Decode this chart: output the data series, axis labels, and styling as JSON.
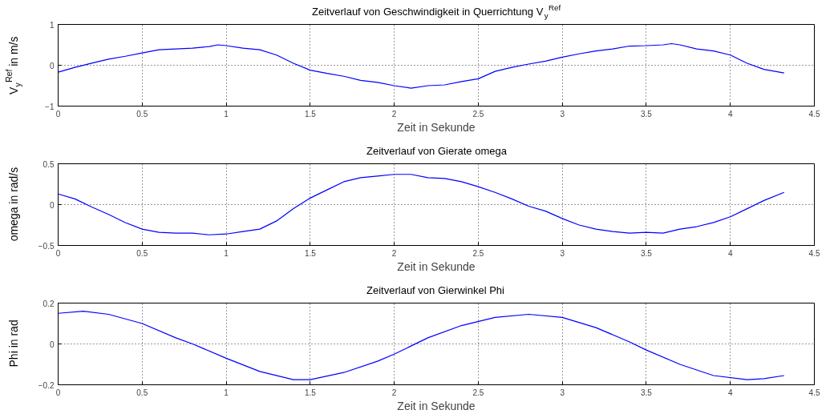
{
  "chart_data": [
    {
      "type": "line",
      "title": "Zeitverlauf von Geschwindigkeit in Querrichtung V$_{y}$$^{Ref}$",
      "xlabel": "Zeit in Sekunde",
      "ylabel": "V$_{y}$$^{Ref}$ in m/s",
      "xlim": [
        0,
        4.5
      ],
      "ylim": [
        -1,
        1
      ],
      "xticks": [
        0,
        0.5,
        1,
        1.5,
        2,
        2.5,
        3,
        3.5,
        4,
        4.5
      ],
      "yticks": [
        {
          "value": -1,
          "label": "−1"
        },
        0,
        1
      ],
      "grid": true,
      "line_style": "solid",
      "series": [
        {
          "color": "#0000ff",
          "x": [
            0,
            0.1,
            0.2,
            0.3,
            0.4,
            0.5,
            0.6,
            0.7,
            0.8,
            0.9,
            0.95,
            1.0,
            1.1,
            1.2,
            1.3,
            1.4,
            1.5,
            1.6,
            1.7,
            1.8,
            1.9,
            2.0,
            2.1,
            2.2,
            2.3,
            2.4,
            2.5,
            2.6,
            2.7,
            2.8,
            2.9,
            3.0,
            3.1,
            3.2,
            3.3,
            3.4,
            3.5,
            3.6,
            3.65,
            3.7,
            3.8,
            3.9,
            4.0,
            4.1,
            4.2,
            4.32
          ],
          "values": [
            -0.17,
            -0.05,
            0.05,
            0.15,
            0.22,
            0.3,
            0.38,
            0.4,
            0.42,
            0.46,
            0.5,
            0.48,
            0.42,
            0.38,
            0.25,
            0.05,
            -0.12,
            -0.2,
            -0.27,
            -0.37,
            -0.42,
            -0.5,
            -0.56,
            -0.5,
            -0.48,
            -0.4,
            -0.33,
            -0.15,
            -0.05,
            0.03,
            0.1,
            0.2,
            0.28,
            0.35,
            0.4,
            0.47,
            0.48,
            0.5,
            0.53,
            0.5,
            0.4,
            0.35,
            0.25,
            0.05,
            -0.1,
            -0.19
          ]
        }
      ]
    },
    {
      "type": "line",
      "title": "Zeitverlauf von Gierate omega",
      "xlabel": "Zeit in Sekunde",
      "ylabel": "omega in rad/s",
      "xlim": [
        0,
        4.5
      ],
      "ylim": [
        -0.5,
        0.5
      ],
      "xticks": [
        0,
        0.5,
        1,
        1.5,
        2,
        2.5,
        3,
        3.5,
        4,
        4.5
      ],
      "yticks": [
        {
          "value": -0.5,
          "label": "−0.5"
        },
        0,
        0.5
      ],
      "grid": true,
      "line_style": "solid",
      "series": [
        {
          "color": "#0000ff",
          "x": [
            0,
            0.1,
            0.2,
            0.3,
            0.4,
            0.5,
            0.6,
            0.7,
            0.8,
            0.9,
            1.0,
            1.1,
            1.2,
            1.3,
            1.4,
            1.5,
            1.6,
            1.7,
            1.8,
            1.9,
            2.0,
            2.1,
            2.2,
            2.3,
            2.4,
            2.5,
            2.6,
            2.7,
            2.8,
            2.9,
            3.0,
            3.1,
            3.2,
            3.3,
            3.4,
            3.5,
            3.6,
            3.7,
            3.8,
            3.9,
            4.0,
            4.1,
            4.2,
            4.32
          ],
          "values": [
            0.13,
            0.07,
            -0.03,
            -0.12,
            -0.22,
            -0.3,
            -0.34,
            -0.35,
            -0.35,
            -0.37,
            -0.36,
            -0.33,
            -0.3,
            -0.2,
            -0.05,
            0.08,
            0.18,
            0.28,
            0.33,
            0.35,
            0.37,
            0.37,
            0.33,
            0.32,
            0.28,
            0.22,
            0.15,
            0.07,
            -0.02,
            -0.08,
            -0.17,
            -0.25,
            -0.3,
            -0.33,
            -0.35,
            -0.34,
            -0.35,
            -0.3,
            -0.27,
            -0.22,
            -0.15,
            -0.05,
            0.05,
            0.15
          ]
        }
      ]
    },
    {
      "type": "line",
      "title": "Zeitverlauf von Gierwinkel Phi",
      "xlabel": "Zeit in Sekunde",
      "ylabel": "Phi in rad",
      "xlim": [
        0,
        4.5
      ],
      "ylim": [
        -0.2,
        0.2
      ],
      "xticks": [
        0,
        0.5,
        1,
        1.5,
        2,
        2.5,
        3,
        3.5,
        4,
        4.5
      ],
      "yticks": [
        {
          "value": -0.2,
          "label": "−0.2"
        },
        0,
        0.2
      ],
      "grid": true,
      "line_style": "solid",
      "series": [
        {
          "color": "#0000ff",
          "x": [
            0,
            0.15,
            0.3,
            0.5,
            0.7,
            0.8,
            1.0,
            1.2,
            1.4,
            1.5,
            1.7,
            1.9,
            2.0,
            2.2,
            2.4,
            2.6,
            2.8,
            3.0,
            3.2,
            3.4,
            3.5,
            3.7,
            3.9,
            4.1,
            4.2,
            4.32
          ],
          "values": [
            0.15,
            0.16,
            0.145,
            0.1,
            0.03,
            0.0,
            -0.07,
            -0.135,
            -0.175,
            -0.175,
            -0.14,
            -0.085,
            -0.05,
            0.03,
            0.09,
            0.13,
            0.145,
            0.13,
            0.08,
            0.01,
            -0.03,
            -0.1,
            -0.155,
            -0.175,
            -0.17,
            -0.155
          ]
        }
      ]
    }
  ]
}
